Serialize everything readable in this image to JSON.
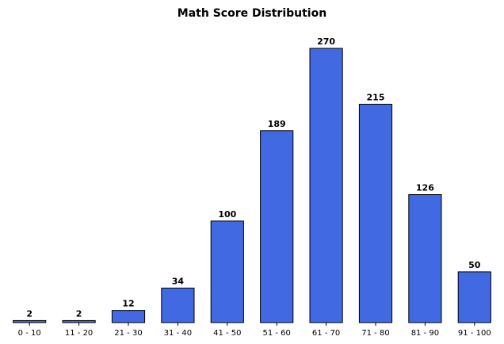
{
  "chart_data": {
    "type": "bar",
    "title": "Math Score Distribution",
    "xlabel": "",
    "ylabel": "",
    "categories": [
      "0 - 10",
      "11 - 20",
      "21 - 30",
      "31 - 40",
      "41 - 50",
      "51 - 60",
      "61 - 70",
      "71 - 80",
      "81 - 90",
      "91 - 100"
    ],
    "values": [
      2,
      2,
      12,
      34,
      100,
      189,
      270,
      215,
      126,
      50
    ],
    "ylim": [
      0,
      270
    ],
    "grid": false,
    "legend": "none",
    "bar_color": "#4169e1",
    "edge_color": "#000000"
  }
}
